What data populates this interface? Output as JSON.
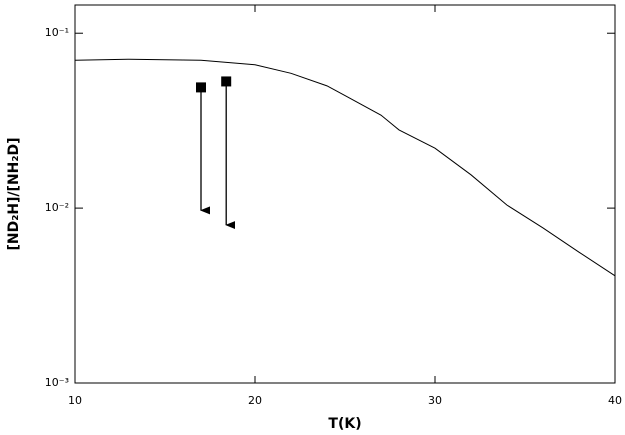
{
  "chart_data": {
    "type": "line",
    "xlabel": "T(K)",
    "ylabel": "[ND₂H]/[NH₂D]",
    "xlim": [
      10,
      40
    ],
    "xticks": [
      10,
      20,
      30,
      40
    ],
    "ylim": [
      0.001,
      0.145
    ],
    "log_y": true,
    "yticks": [
      {
        "value": 0.001,
        "label": "10⁻³"
      },
      {
        "value": 0.01,
        "label": "10⁻²"
      },
      {
        "value": 0.1,
        "label": "10⁻¹"
      }
    ],
    "x": [
      10,
      13,
      17,
      20,
      22,
      24,
      25,
      27,
      28,
      30,
      32,
      34,
      36,
      38,
      40
    ],
    "series": [
      {
        "color": "#000000",
        "values": [
          0.07,
          0.071,
          0.07,
          0.066,
          0.059,
          0.05,
          0.044,
          0.034,
          0.028,
          0.022,
          0.0155,
          0.0104,
          0.0077,
          0.0056,
          0.0041
        ]
      }
    ],
    "upper_limits": {
      "color": "#000000",
      "x": [
        17,
        18.4
      ],
      "values": [
        0.049,
        0.053
      ],
      "arrow_to": [
        0.0097,
        0.008
      ]
    }
  }
}
